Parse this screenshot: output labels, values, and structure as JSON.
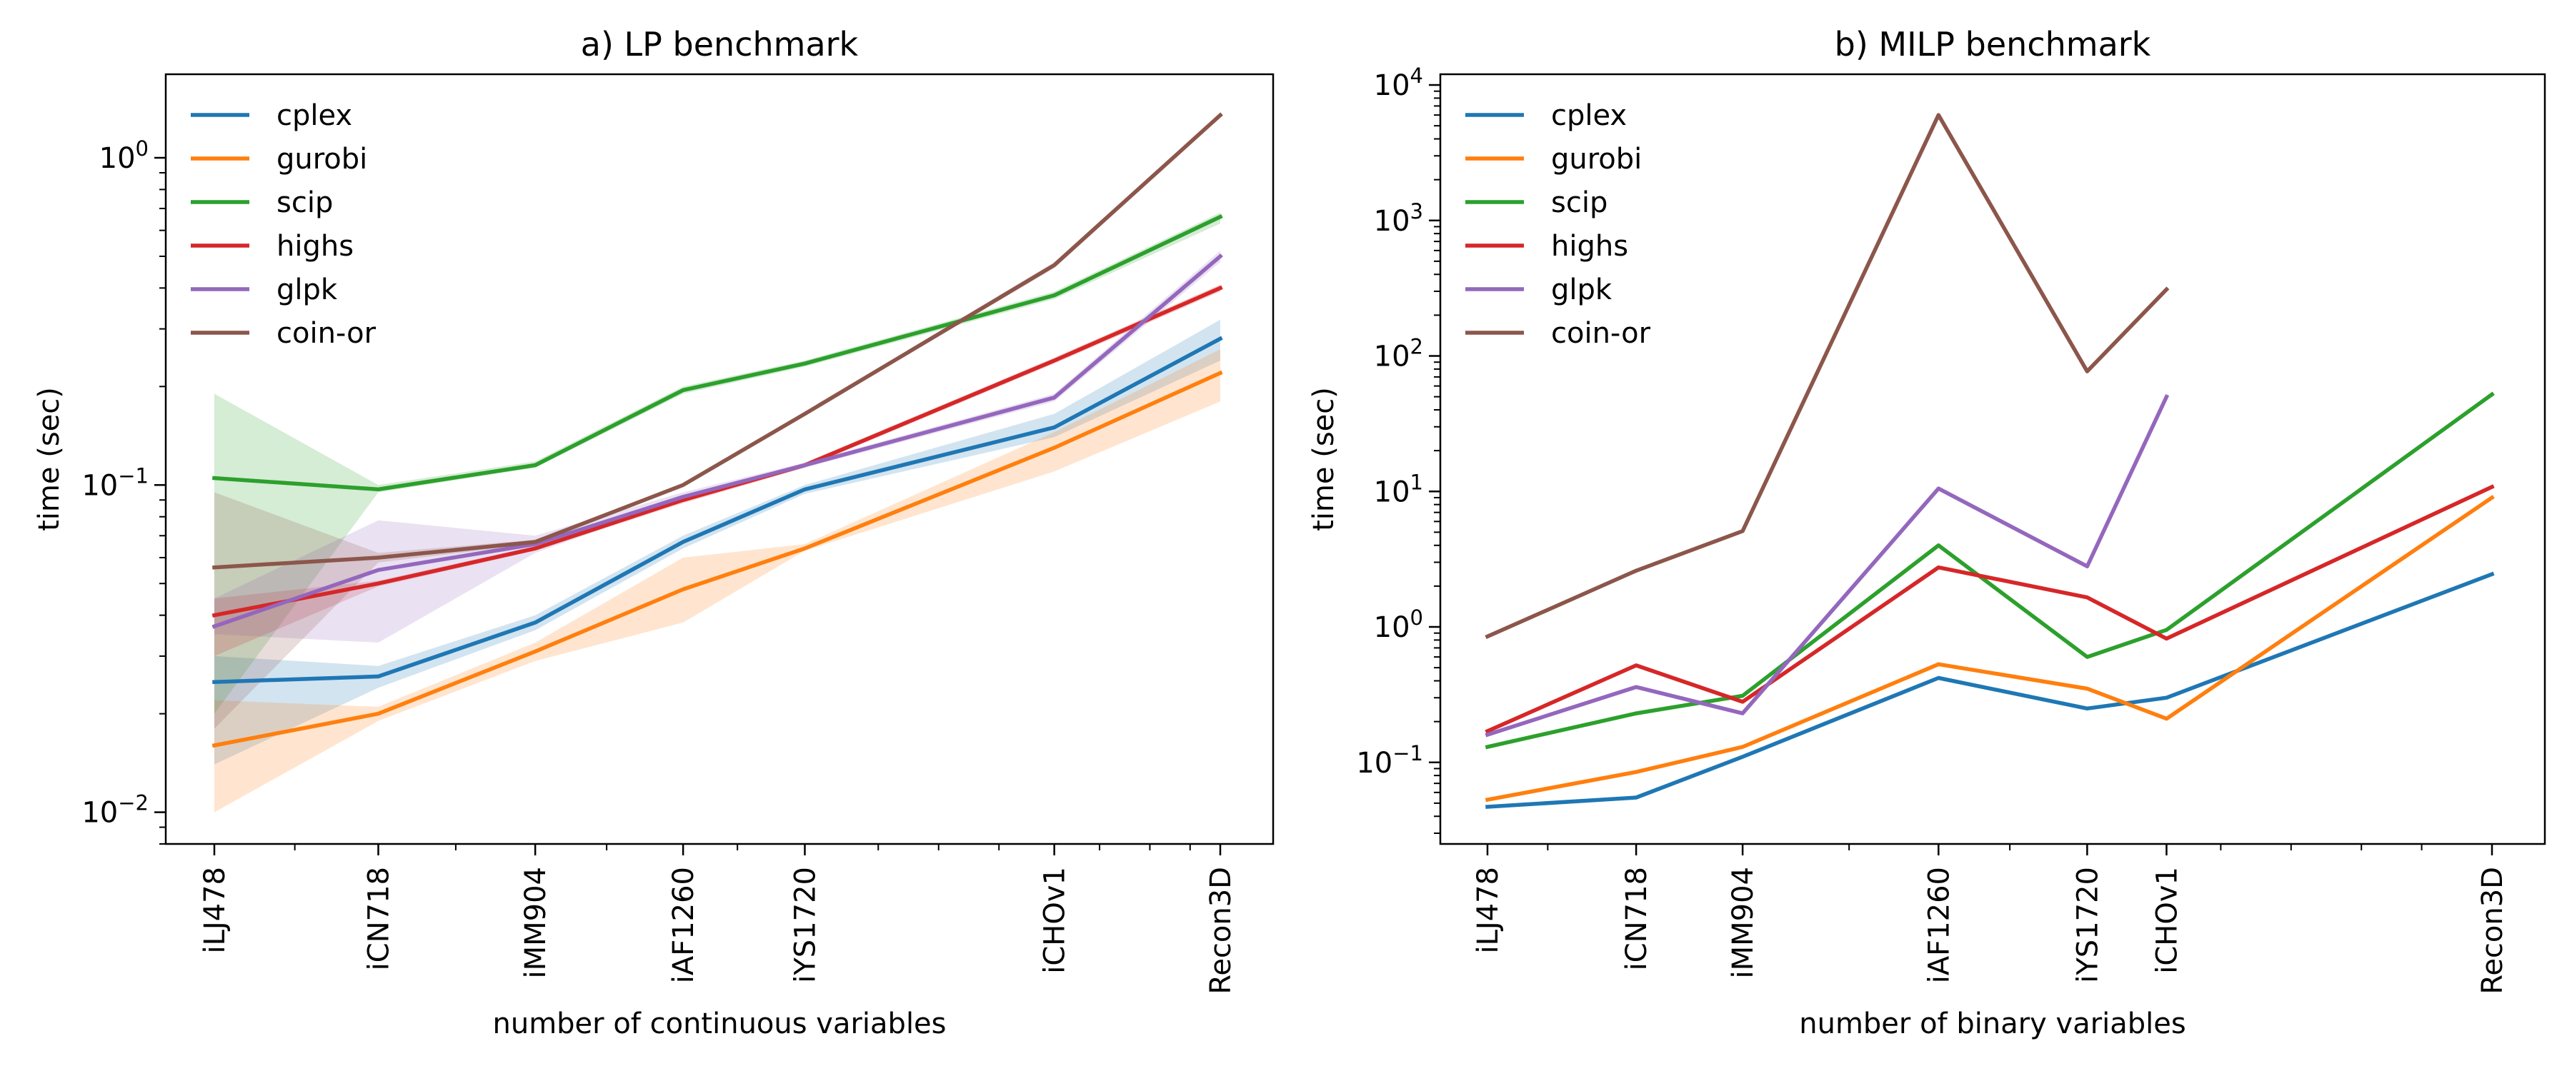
{
  "chart_data": [
    {
      "type": "line",
      "title": "a) LP benchmark",
      "xlabel": "number of continuous variables",
      "ylabel": "time (sec)",
      "yscale": "log",
      "ylim": [
        0.008,
        1.8
      ],
      "xscale": "log",
      "legend_position": "top-left",
      "grid": false,
      "categories": [
        "iLJ478",
        "iCN718",
        "iMM904",
        "iAF1260",
        "iYS1720",
        "iCHOv1",
        "Recon3D"
      ],
      "x_positions": [
        0.0,
        0.163,
        0.319,
        0.466,
        0.587,
        0.835,
        1.0
      ],
      "yticks": [
        {
          "value": 0.01,
          "base": "10",
          "exp": "−2"
        },
        {
          "value": 0.1,
          "base": "10",
          "exp": "−1"
        },
        {
          "value": 1,
          "base": "10",
          "exp": "0"
        }
      ],
      "series": [
        {
          "name": "cplex",
          "color": "#1f77b4",
          "values": [
            0.025,
            0.026,
            0.038,
            0.067,
            0.097,
            0.15,
            0.28
          ],
          "band_low": [
            0.014,
            0.024,
            0.036,
            0.064,
            0.094,
            0.14,
            0.24
          ],
          "band_high": [
            0.03,
            0.028,
            0.04,
            0.07,
            0.1,
            0.165,
            0.32
          ]
        },
        {
          "name": "gurobi",
          "color": "#ff7f0e",
          "values": [
            0.016,
            0.02,
            0.031,
            0.048,
            0.064,
            0.13,
            0.22
          ],
          "band_low": [
            0.01,
            0.019,
            0.029,
            0.038,
            0.063,
            0.11,
            0.18
          ],
          "band_high": [
            0.022,
            0.021,
            0.033,
            0.06,
            0.066,
            0.145,
            0.26
          ]
        },
        {
          "name": "scip",
          "color": "#2ca02c",
          "values": [
            0.105,
            0.097,
            0.115,
            0.195,
            0.235,
            0.38,
            0.66
          ],
          "band_low": [
            0.02,
            0.095,
            0.113,
            0.19,
            0.23,
            0.37,
            0.63
          ],
          "band_high": [
            0.19,
            0.1,
            0.118,
            0.2,
            0.24,
            0.39,
            0.68
          ]
        },
        {
          "name": "highs",
          "color": "#d62728",
          "values": [
            0.04,
            0.05,
            0.064,
            0.09,
            0.115,
            0.24,
            0.4
          ],
          "band_low": [
            0.03,
            0.049,
            0.063,
            0.088,
            0.113,
            0.235,
            0.39
          ],
          "band_high": [
            0.045,
            0.051,
            0.065,
            0.092,
            0.117,
            0.245,
            0.41
          ]
        },
        {
          "name": "glpk",
          "color": "#9467bd",
          "values": [
            0.037,
            0.055,
            0.066,
            0.092,
            0.115,
            0.185,
            0.5
          ],
          "band_low": [
            0.035,
            0.033,
            0.062,
            0.09,
            0.113,
            0.18,
            0.48
          ],
          "band_high": [
            0.045,
            0.078,
            0.07,
            0.095,
            0.117,
            0.19,
            0.52
          ]
        },
        {
          "name": "coin-or",
          "color": "#8c564b",
          "values": [
            0.056,
            0.06,
            0.067,
            0.1,
            0.165,
            0.47,
            1.35
          ],
          "band_low": [
            0.018,
            0.058,
            0.066,
            0.099,
            0.163,
            0.46,
            1.33
          ],
          "band_high": [
            0.095,
            0.062,
            0.068,
            0.101,
            0.167,
            0.48,
            1.37
          ]
        }
      ]
    },
    {
      "type": "line",
      "title": "b) MILP benchmark",
      "xlabel": "number of binary variables",
      "ylabel": "time (sec)",
      "yscale": "log",
      "ylim": [
        0.025,
        12000
      ],
      "xscale": "log",
      "legend_position": "top-left",
      "grid": false,
      "categories": [
        "iLJ478",
        "iCN718",
        "iMM904",
        "iAF1260",
        "iYS1720",
        "iCHOv1",
        "Recon3D"
      ],
      "x_positions": [
        0.0,
        0.148,
        0.254,
        0.449,
        0.597,
        0.676,
        1.0
      ],
      "yticks": [
        {
          "value": 0.1,
          "base": "10",
          "exp": "−1"
        },
        {
          "value": 1,
          "base": "10",
          "exp": "0"
        },
        {
          "value": 10,
          "base": "10",
          "exp": "1"
        },
        {
          "value": 100,
          "base": "10",
          "exp": "2"
        },
        {
          "value": 1000,
          "base": "10",
          "exp": "3"
        },
        {
          "value": 10000,
          "base": "10",
          "exp": "4"
        }
      ],
      "series": [
        {
          "name": "cplex",
          "color": "#1f77b4",
          "values": [
            0.047,
            0.055,
            0.11,
            0.42,
            0.25,
            0.3,
            2.45
          ]
        },
        {
          "name": "gurobi",
          "color": "#ff7f0e",
          "values": [
            0.053,
            0.085,
            0.13,
            0.53,
            0.35,
            0.21,
            9.0
          ]
        },
        {
          "name": "scip",
          "color": "#2ca02c",
          "values": [
            0.13,
            0.23,
            0.31,
            4.0,
            0.6,
            0.95,
            52
          ]
        },
        {
          "name": "highs",
          "color": "#d62728",
          "values": [
            0.17,
            0.52,
            0.28,
            2.75,
            1.65,
            0.82,
            10.8
          ]
        },
        {
          "name": "glpk",
          "color": "#9467bd",
          "values": [
            0.16,
            0.36,
            0.23,
            10.5,
            2.8,
            50,
            null
          ]
        },
        {
          "name": "coin-or",
          "color": "#8c564b",
          "values": [
            0.85,
            2.6,
            5.1,
            6000,
            77,
            310,
            null
          ]
        }
      ]
    }
  ]
}
